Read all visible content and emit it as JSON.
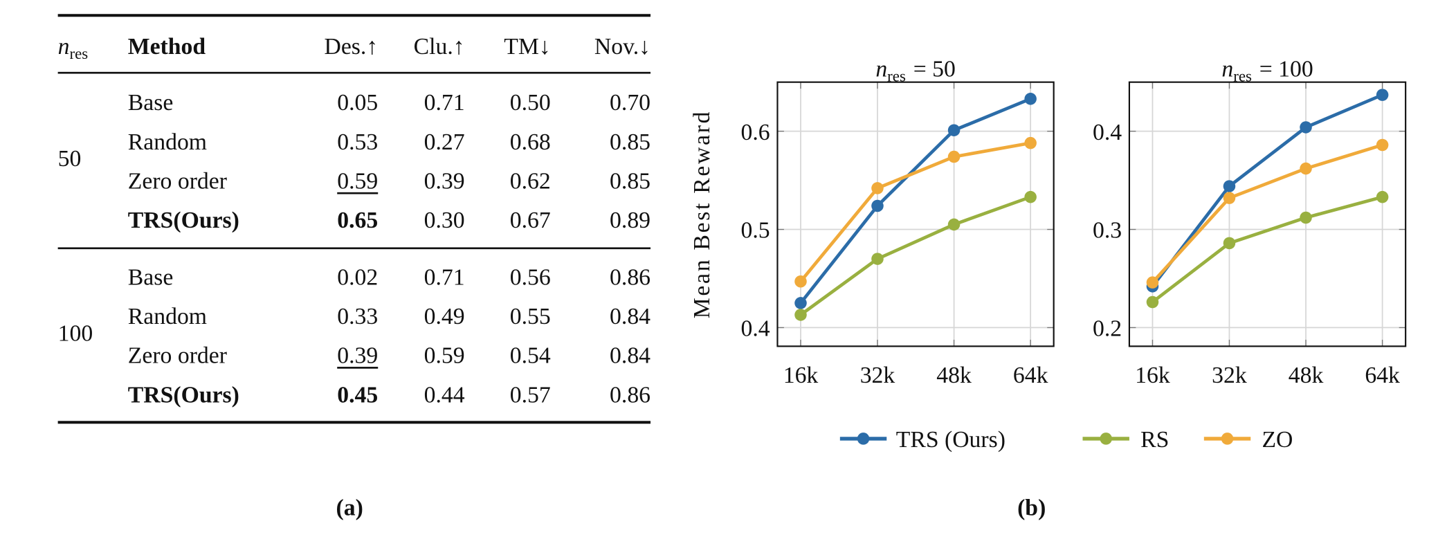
{
  "table": {
    "header": {
      "n_var": "n",
      "n_sub": "res",
      "method": "Method",
      "columns": [
        "Des.↑",
        "Clu.↑",
        "TM↓",
        "Nov.↓"
      ]
    },
    "groups": [
      {
        "n_res": "50",
        "rows": [
          {
            "method": "Base",
            "values": [
              "0.05",
              "0.71",
              "0.50",
              "0.70"
            ],
            "bold": false,
            "underline_col": -1
          },
          {
            "method": "Random",
            "values": [
              "0.53",
              "0.27",
              "0.68",
              "0.85"
            ],
            "bold": false,
            "underline_col": -1
          },
          {
            "method": "Zero order",
            "values": [
              "0.59",
              "0.39",
              "0.62",
              "0.85"
            ],
            "bold": false,
            "underline_col": 0
          },
          {
            "method": "TRS(Ours)",
            "values": [
              "0.65",
              "0.30",
              "0.67",
              "0.89"
            ],
            "bold": true,
            "underline_col": -1
          }
        ]
      },
      {
        "n_res": "100",
        "rows": [
          {
            "method": "Base",
            "values": [
              "0.02",
              "0.71",
              "0.56",
              "0.86"
            ],
            "bold": false,
            "underline_col": -1
          },
          {
            "method": "Random",
            "values": [
              "0.33",
              "0.49",
              "0.55",
              "0.84"
            ],
            "bold": false,
            "underline_col": -1
          },
          {
            "method": "Zero order",
            "values": [
              "0.39",
              "0.59",
              "0.54",
              "0.84"
            ],
            "bold": false,
            "underline_col": 0
          },
          {
            "method": "TRS(Ours)",
            "values": [
              "0.45",
              "0.44",
              "0.57",
              "0.86"
            ],
            "bold": true,
            "underline_col": -1
          }
        ]
      }
    ],
    "caption": "(a)"
  },
  "figure_caption": "(b)",
  "legend": [
    {
      "name": "TRS (Ours)",
      "color": "#2b6ca8"
    },
    {
      "name": "RS",
      "color": "#99b040"
    },
    {
      "name": "ZO",
      "color": "#f0aa3a"
    }
  ],
  "chart_data": [
    {
      "type": "line",
      "title": {
        "var": "n",
        "sub": "res",
        "rhs": "= 50"
      },
      "ylabel": "Mean Best Reward",
      "categories": [
        "16k",
        "32k",
        "48k",
        "64k"
      ],
      "ylim": [
        0.381,
        0.65
      ],
      "yticks": [
        "0.4",
        "0.5",
        "0.6"
      ],
      "grid": true,
      "series": [
        {
          "name": "TRS (Ours)",
          "color": "#2b6ca8",
          "values": [
            0.425,
            0.524,
            0.601,
            0.633
          ]
        },
        {
          "name": "RS",
          "color": "#99b040",
          "values": [
            0.413,
            0.47,
            0.505,
            0.533
          ]
        },
        {
          "name": "ZO",
          "color": "#f0aa3a",
          "values": [
            0.447,
            0.542,
            0.574,
            0.588
          ]
        }
      ]
    },
    {
      "type": "line",
      "title": {
        "var": "n",
        "sub": "res",
        "rhs": "= 100"
      },
      "ylabel": "",
      "categories": [
        "16k",
        "32k",
        "48k",
        "64k"
      ],
      "ylim": [
        0.181,
        0.45
      ],
      "yticks": [
        "0.2",
        "0.3",
        "0.4"
      ],
      "grid": true,
      "series": [
        {
          "name": "TRS (Ours)",
          "color": "#2b6ca8",
          "values": [
            0.242,
            0.344,
            0.404,
            0.437
          ]
        },
        {
          "name": "RS",
          "color": "#99b040",
          "values": [
            0.226,
            0.286,
            0.312,
            0.333
          ]
        },
        {
          "name": "ZO",
          "color": "#f0aa3a",
          "values": [
            0.246,
            0.332,
            0.362,
            0.386
          ]
        }
      ]
    }
  ]
}
